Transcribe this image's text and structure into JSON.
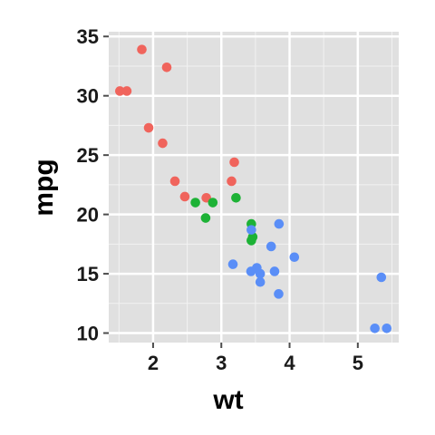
{
  "chart_data": {
    "type": "scatter",
    "xlabel": "wt",
    "ylabel": "mpg",
    "xlim": [
      1.35,
      5.6
    ],
    "ylim": [
      9.2,
      35.4
    ],
    "x_ticks": [
      2,
      3,
      4,
      5
    ],
    "y_ticks": [
      10,
      15,
      20,
      25,
      30,
      35
    ],
    "grid": true,
    "legend": "none",
    "panel_background": "#e0e0e0",
    "series": [
      {
        "color": "#f0645c",
        "points": [
          [
            1.835,
            33.9
          ],
          [
            2.2,
            32.4
          ],
          [
            1.513,
            30.4
          ],
          [
            1.615,
            30.4
          ],
          [
            1.935,
            27.3
          ],
          [
            2.14,
            26.0
          ],
          [
            3.19,
            24.4
          ],
          [
            2.32,
            22.8
          ],
          [
            3.15,
            22.8
          ],
          [
            2.465,
            21.5
          ],
          [
            2.78,
            21.4
          ]
        ]
      },
      {
        "color": "#1db236",
        "points": [
          [
            3.215,
            21.4
          ],
          [
            2.62,
            21.0
          ],
          [
            2.875,
            21.0
          ],
          [
            2.77,
            19.7
          ],
          [
            3.44,
            19.2
          ],
          [
            3.46,
            18.1
          ],
          [
            3.44,
            17.8
          ]
        ]
      },
      {
        "color": "#5a8ef7",
        "points": [
          [
            3.845,
            19.2
          ],
          [
            3.44,
            18.7
          ],
          [
            3.73,
            17.3
          ],
          [
            4.07,
            16.4
          ],
          [
            3.17,
            15.8
          ],
          [
            3.52,
            15.5
          ],
          [
            3.435,
            15.2
          ],
          [
            3.78,
            15.2
          ],
          [
            3.57,
            15.0
          ],
          [
            3.57,
            14.3
          ],
          [
            3.84,
            13.3
          ],
          [
            5.345,
            14.7
          ],
          [
            5.25,
            10.4
          ],
          [
            5.424,
            10.4
          ]
        ]
      }
    ]
  }
}
